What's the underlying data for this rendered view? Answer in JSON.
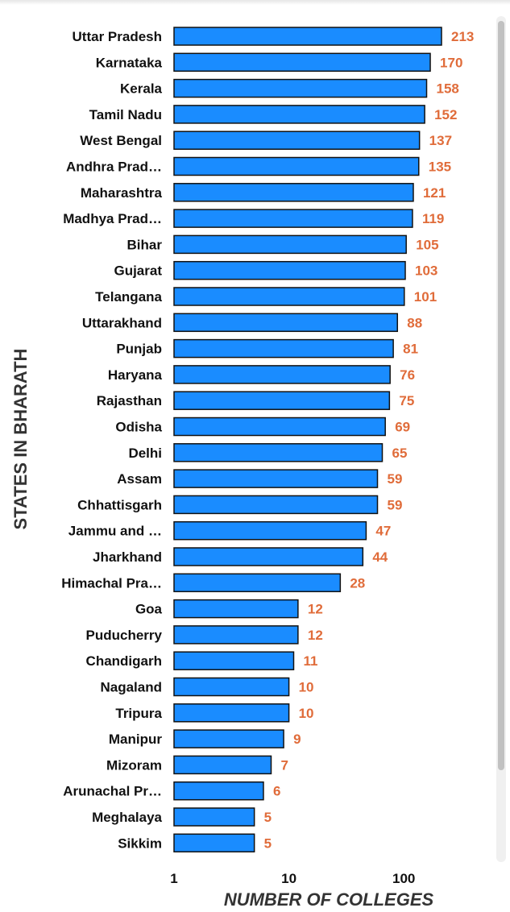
{
  "colors": {
    "bar_fill": "#1a8cff",
    "bar_stroke": "#111111",
    "value_label": "#e06c3a",
    "axis_title": "#333333"
  },
  "chart_data": {
    "type": "bar",
    "orientation": "horizontal",
    "x_scale": "log",
    "xlim": [
      1,
      213
    ],
    "x_ticks": [
      "1",
      "10",
      "100"
    ],
    "xlabel": "NUMBER OF COLLEGES",
    "ylabel": "STATES IN BHARATH",
    "categories": [
      "Uttar Pradesh",
      "Karnataka",
      "Kerala",
      "Tamil Nadu",
      "West Bengal",
      "Andhra Prad…",
      "Maharashtra",
      "Madhya Prad…",
      "Bihar",
      "Gujarat",
      "Telangana",
      "Uttarakhand",
      "Punjab",
      "Haryana",
      "Rajasthan",
      "Odisha",
      "Delhi",
      "Assam",
      "Chhattisgarh",
      "Jammu and …",
      "Jharkhand",
      "Himachal Pra…",
      "Goa",
      "Puducherry",
      "Chandigarh",
      "Nagaland",
      "Tripura",
      "Manipur",
      "Mizoram",
      "Arunachal Pr…",
      "Meghalaya",
      "Sikkim"
    ],
    "values": [
      213,
      170,
      158,
      152,
      137,
      135,
      121,
      119,
      105,
      103,
      101,
      88,
      81,
      76,
      75,
      69,
      65,
      59,
      59,
      47,
      44,
      28,
      12,
      12,
      11,
      10,
      10,
      9,
      7,
      6,
      5,
      5
    ],
    "grid": false,
    "legend": "none"
  }
}
